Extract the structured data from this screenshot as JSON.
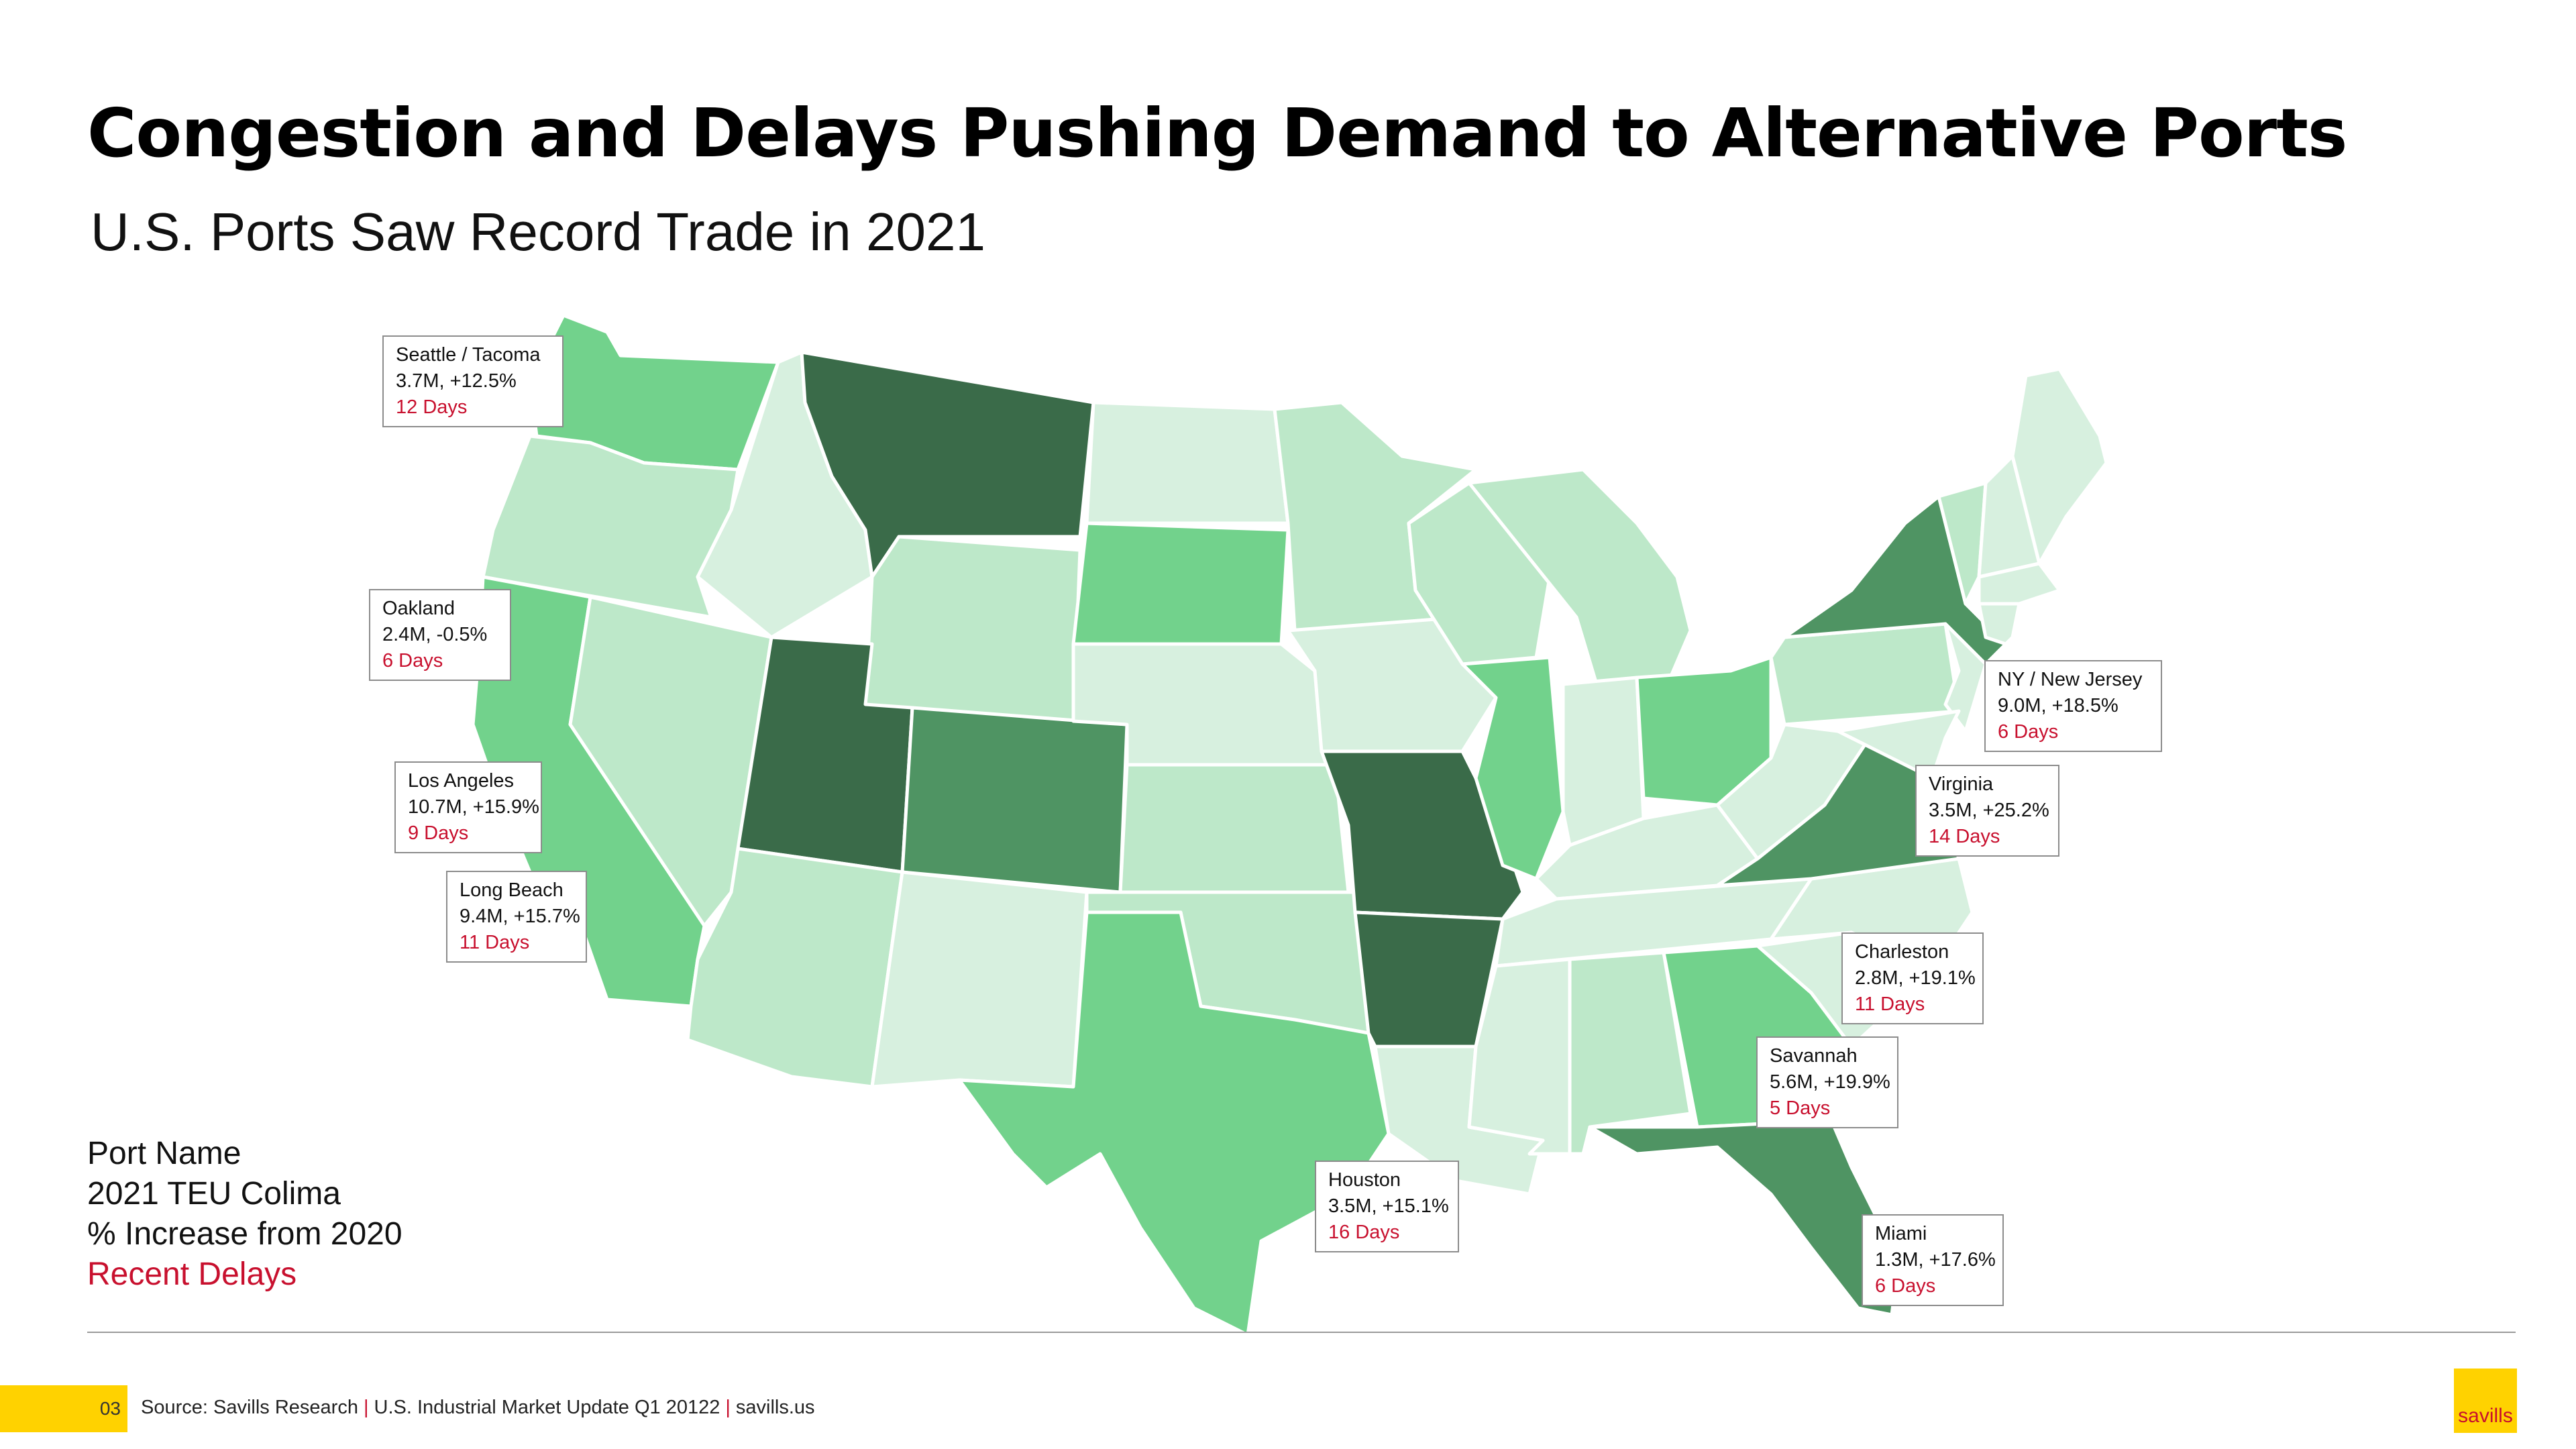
{
  "title": "Congestion and Delays Pushing Demand to Alternative Ports",
  "subtitle": "U.S. Ports Saw Record Trade in 2021",
  "legend": {
    "line1": "Port Name",
    "line2": "2021 TEU Colima",
    "line3": "% Increase from 2020",
    "line4": "Recent Delays"
  },
  "ports": [
    {
      "name": "Seattle / Tacoma",
      "stats": "3.7M, +12.5%",
      "delay": "12 Days"
    },
    {
      "name": "Oakland",
      "stats": "2.4M, -0.5%",
      "delay": "6 Days"
    },
    {
      "name": "Los Angeles",
      "stats": "10.7M, +15.9%",
      "delay": "9 Days"
    },
    {
      "name": "Long Beach",
      "stats": "9.4M, +15.7%",
      "delay": "11 Days"
    },
    {
      "name": "NY / New Jersey",
      "stats": "9.0M, +18.5%",
      "delay": "6 Days"
    },
    {
      "name": "Virginia",
      "stats": "3.5M, +25.2%",
      "delay": "14 Days"
    },
    {
      "name": "Charleston",
      "stats": "2.8M, +19.1%",
      "delay": "11 Days"
    },
    {
      "name": "Savannah",
      "stats": "5.6M, +19.9%",
      "delay": "5 Days"
    },
    {
      "name": "Houston",
      "stats": "3.5M, +15.1%",
      "delay": "16 Days"
    },
    {
      "name": "Miami",
      "stats": "1.3M, +17.6%",
      "delay": "6 Days"
    }
  ],
  "footer": {
    "page_number": "03",
    "source_1": "Source: Savills Research",
    "sep": "|",
    "source_2": "U.S. Industrial Market Update Q1 20122",
    "source_3": "savills.us",
    "logo": "savills"
  },
  "colors": {
    "lightest": "#d7f0df",
    "light": "#bde8c9",
    "medium": "#72d28c",
    "dark": "#4f9463",
    "darkest": "#3a6b49",
    "delay_red": "#c8102e",
    "brand_yellow": "#ffd200"
  }
}
